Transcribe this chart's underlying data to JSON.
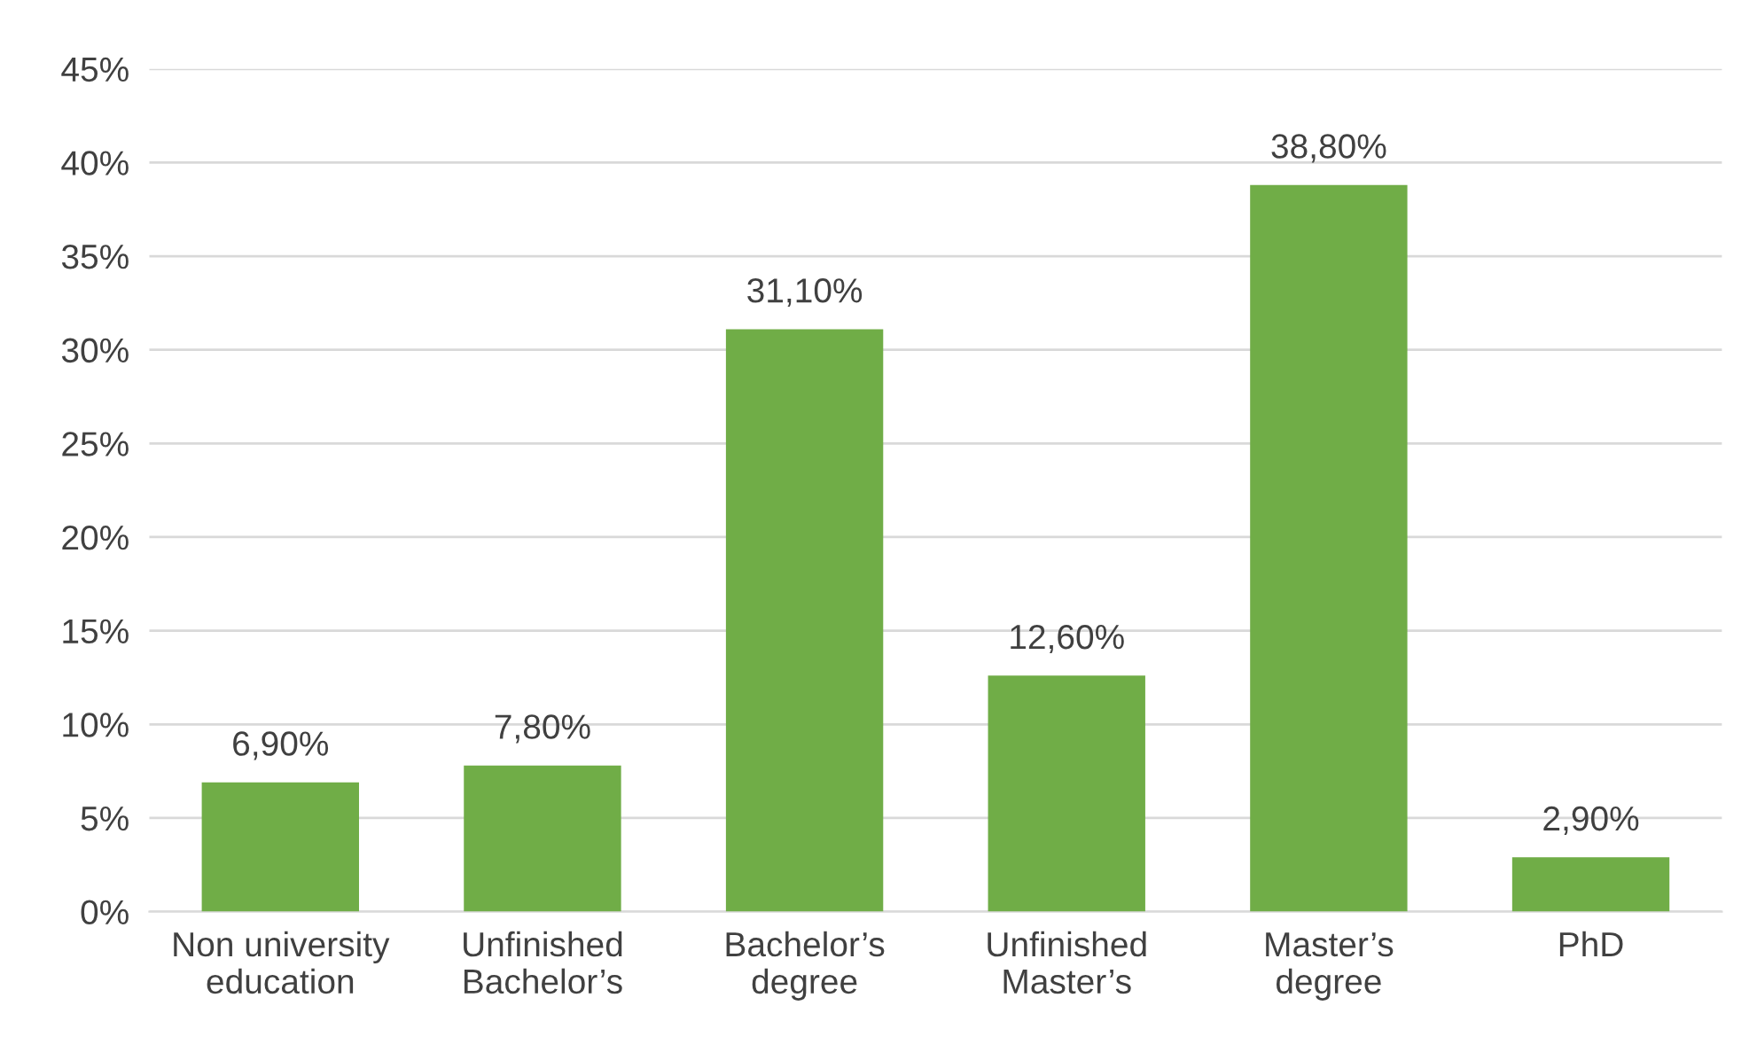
{
  "chart_data": {
    "type": "bar",
    "categories": [
      "Non university\neducation",
      "Unfinished\nBachelor’s",
      "Bachelor’s\ndegree",
      "Unfinished\nMaster’s",
      "Master’s\ndegree",
      "PhD"
    ],
    "values": [
      6.9,
      7.8,
      31.1,
      12.6,
      38.8,
      2.9
    ],
    "value_labels": [
      "6,90%",
      "7,80%",
      "31,10%",
      "12,60%",
      "38,80%",
      "2,90%"
    ],
    "color": "#70ad47",
    "ylim": [
      0,
      45
    ],
    "yticks": [
      {
        "value": 0,
        "label": "0%"
      },
      {
        "value": 5,
        "label": "5%"
      },
      {
        "value": 10,
        "label": "10%"
      },
      {
        "value": 15,
        "label": "15%"
      },
      {
        "value": 20,
        "label": "20%"
      },
      {
        "value": 25,
        "label": "25%"
      },
      {
        "value": 30,
        "label": "30%"
      },
      {
        "value": 35,
        "label": "35%"
      },
      {
        "value": 40,
        "label": "40%"
      },
      {
        "value": 45,
        "label": "45%"
      }
    ],
    "grid": "y",
    "legend": false
  }
}
